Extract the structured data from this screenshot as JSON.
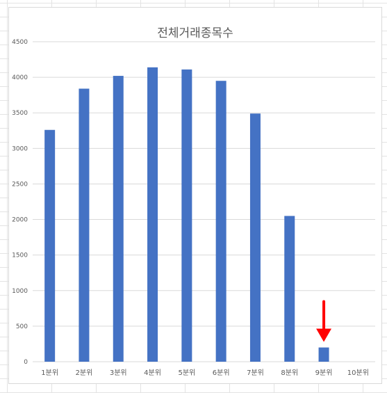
{
  "chart_data": {
    "type": "bar",
    "title": "전체거래종목수",
    "xlabel": "",
    "ylabel": "",
    "categories": [
      "1분위",
      "2분위",
      "3분위",
      "4분위",
      "5분위",
      "6분위",
      "7분위",
      "8분위",
      "9분위",
      "10분위"
    ],
    "values": [
      3260,
      3840,
      4020,
      4140,
      4110,
      3950,
      3490,
      2050,
      200,
      0
    ],
    "ylim": [
      0,
      4500
    ],
    "yticks": [
      0,
      500,
      1000,
      1500,
      2000,
      2500,
      3000,
      3500,
      4000,
      4500
    ],
    "grid": true,
    "legend": "none",
    "colors": {
      "bar": "#4472c4",
      "grid": "#d9d9d9",
      "annotation": "#ff0000"
    },
    "annotations": [
      {
        "type": "arrow",
        "category": "9분위",
        "direction": "down"
      }
    ]
  }
}
